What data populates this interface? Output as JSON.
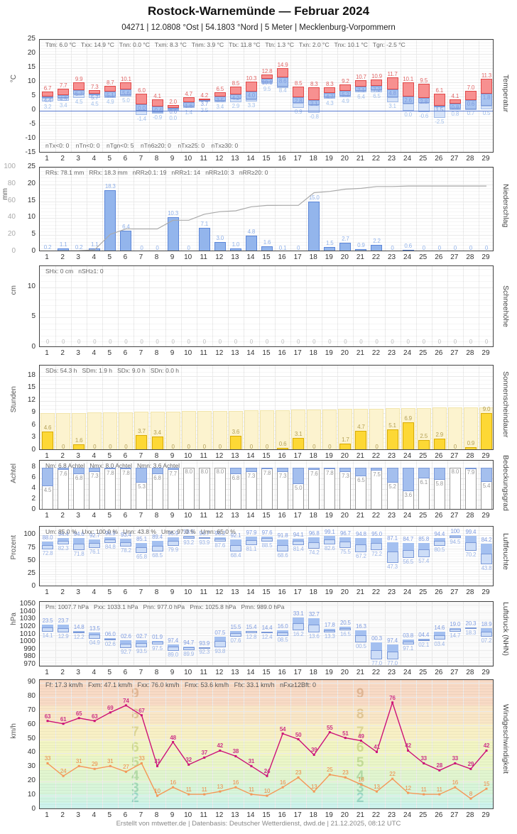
{
  "title": "Rostock-Warnemünde  —  Februar 2024",
  "subtitle": "04271  |  12.0808 °Ost  |  54.1803 °Nord  |  5 Meter  |  Mecklenburg-Vorpommern",
  "footer": "Erstellt von mtwetter.de | Datenbasis: Deutscher Wetterdienst, dwd.de | 21.12.2025, 08:12 UTC",
  "days": [
    1,
    2,
    3,
    4,
    5,
    6,
    7,
    8,
    9,
    10,
    11,
    12,
    13,
    14,
    15,
    16,
    17,
    18,
    19,
    20,
    21,
    22,
    23,
    24,
    25,
    26,
    27,
    28,
    29
  ],
  "colors": {
    "temp_max_fill": "#f79090",
    "temp_max_border": "#e04848",
    "temp_mid_fill": "#a9c4f0",
    "temp_mid_border": "#7b99d8",
    "temp_min_fill": "#d6e3f8",
    "temp_min_border": "#a3bce8",
    "zero_line": "#5577cc",
    "temp_label_max": "#e06666",
    "temp_label_mid": "#7f9ce0",
    "temp_label_min": "#a3c0ea",
    "precip_fill": "#93b5ec",
    "precip_border": "#5c86d8",
    "precip_label": "#8fb0e8",
    "cum_line": "#aaaaaa",
    "snow_label": "#bbbbbb",
    "sun_fill": "#fdd835",
    "sun_border": "#d9ac04",
    "sun_bg_fill": "#fcf3cf",
    "sun_bg_border": "#f2e5ac",
    "sun_label": "#b3a055",
    "cloud_fill": "#a4bfee",
    "cloud_border": "#999999",
    "cloud_label": "#999999",
    "range_fill_light": "#cdddf7",
    "range_fill_dark": "#a4c0f0",
    "range_border": "#7b99d8",
    "range_label_max": "#7f9ce0",
    "range_label_min": "#9ab3e6",
    "wind_fx": "#cc1177",
    "wind_fx_label": "#cc3388",
    "wind_fm": "#f49858",
    "wind_fm_label": "#ee8844"
  },
  "chart_data": [
    {
      "id": "temperatur",
      "kind": "temp",
      "type": "bar",
      "right_label": "Temperatur",
      "unit": "°C",
      "stats": "Ttm: 6.0 °C   Txx: 14.9 °C   Tnn: 0.0 °C   Txm: 8.3 °C   Tnm: 3.9 °C   Ttx: 11.8 °C   Ttn: 1.3 °C   Txn: 2.0 °C   Tnx: 10.1 °C   Tgn: -2.5 °C",
      "stats_bottom": "nTx<0: 0    nTn<0: 0    nTgn<0: 5    nTn6≥20: 0    nTx≥25: 0    nTx≥30: 0",
      "ylim": [
        -15,
        25
      ],
      "ticks": [
        25,
        20,
        15,
        10,
        5,
        0,
        -5,
        -10,
        -15
      ],
      "minor": 1,
      "tmax": [
        6.7,
        7.7,
        9.9,
        7.3,
        8.7,
        10.1,
        6.0,
        4.1,
        2.0,
        4.7,
        4.2,
        6.5,
        8.5,
        10.3,
        12.8,
        14.9,
        8.5,
        8.3,
        8.3,
        9.2,
        10.7,
        10.9,
        11.7,
        10.1,
        9.5,
        6.1,
        4.1,
        7.0,
        11.3
      ],
      "tmid": [
        4.4,
        4.5,
        5.7,
        5.7,
        5.1,
        5.6,
        0.0,
        -0.4,
        0.6,
        1.6,
        3.7,
        3.5,
        4.2,
        4.0,
        10.1,
        8.6,
        2.8,
        2.1,
        4.7,
        5.2,
        7.1,
        7.2,
        4.8,
        2.6,
        2.8,
        1.5,
        0.8,
        0.6,
        1.8
      ],
      "tmin": [
        3.2,
        3.4,
        4.5,
        4.5,
        4.9,
        5.0,
        -1.4,
        -0.9,
        0.0,
        1.4,
        3.5,
        3.4,
        2.9,
        3.3,
        9.5,
        8.4,
        0.9,
        -0.8,
        4.3,
        4.9,
        6.4,
        6.5,
        3.1,
        0.0,
        -0.6,
        -2.5,
        0.8,
        0.7,
        0.5
      ]
    },
    {
      "id": "niederschlag",
      "kind": "precip",
      "type": "bar",
      "right_label": "Niederschlag",
      "unit": "mm",
      "stats": "RRs: 78.1 mm   RRx: 18.3 mm   nRR≥0.1: 19   nRR≥1: 14   nRR≥10: 3   nRR≥20: 0",
      "ylim": [
        0,
        25
      ],
      "ticks": [
        25,
        20,
        15,
        10,
        5,
        0
      ],
      "minor": 1,
      "gray_ylim": [
        0,
        100
      ],
      "gray_ticks": [
        100,
        80,
        60,
        40,
        20,
        0
      ],
      "values": [
        0.2,
        1.1,
        0.2,
        1.1,
        18.3,
        6.4,
        0,
        0,
        10.3,
        0,
        7.1,
        3.0,
        1.0,
        4.8,
        1.6,
        0.1,
        0,
        15.0,
        1.5,
        2.7,
        0.9,
        2.2,
        0,
        0.6,
        0,
        0,
        0,
        0,
        0
      ]
    },
    {
      "id": "schneehoehe",
      "kind": "snow",
      "type": "bar",
      "right_label": "Schneehöhe",
      "unit": "cm",
      "stats": "SHx: 0 cm   nSH≥1: 0",
      "ylim": [
        0,
        13.5
      ],
      "ticks": [
        10,
        5,
        0
      ],
      "minor": 1,
      "values": [
        0,
        0,
        0,
        0,
        0,
        0,
        0,
        0,
        0,
        0,
        0,
        0,
        0,
        0,
        0,
        0,
        0,
        0,
        0,
        0,
        0,
        0,
        0,
        0,
        0,
        0,
        0,
        0,
        0
      ]
    },
    {
      "id": "sonnenscheindauer",
      "kind": "sun",
      "type": "bar",
      "right_label": "Sonnenscheindauer",
      "unit": "Stunden",
      "stats": "SDs: 54.3 h   SDm: 1.9 h   SDx: 9.0 h   SDn: 0.0 h",
      "ylim": [
        0,
        20.5
      ],
      "ticks": [
        18,
        15,
        12,
        9,
        6,
        3,
        0
      ],
      "minor": 1,
      "daylight_start": 9.0,
      "daylight_end": 10.5,
      "values": [
        4.6,
        0,
        1.6,
        0,
        0,
        0,
        3.7,
        3.4,
        0,
        0,
        0,
        0,
        3.6,
        0,
        0,
        0.6,
        3.1,
        0,
        0,
        1.7,
        4.7,
        0,
        5.1,
        6.9,
        2.5,
        2.9,
        0,
        0.9,
        9.0
      ]
    },
    {
      "id": "bedeckungsgrad",
      "kind": "cloud",
      "type": "bar",
      "right_label": "Bedeckungsgrad",
      "unit": "Achtel",
      "stats": "Nm: 6.8 Achtel   Nmx: 8.0 Achtel   Nmn: 3.6 Achtel",
      "ylim": [
        0,
        9.4
      ],
      "ticks": [
        8,
        6,
        4,
        2,
        0
      ],
      "minor": 1,
      "full_scale": 8,
      "values": [
        4.5,
        7.6,
        6.8,
        7.3,
        7.8,
        7.8,
        5.3,
        6.8,
        7.7,
        8.0,
        8.0,
        8.0,
        6.8,
        7.3,
        7.8,
        7.3,
        5.0,
        7.6,
        7.8,
        7.3,
        6.5,
        7.5,
        5.2,
        3.6,
        6.1,
        5.8,
        8.0,
        7.9,
        5.4
      ]
    },
    {
      "id": "luftfeuchte",
      "kind": "range",
      "type": "bar",
      "right_label": "Luftfeuchte",
      "unit": "Prozent",
      "label_fmt": "percent",
      "stats": "Um: 85.0 %   Uxx: 100.0 %   Unn: 43.8 %   Umx: 97.0 %   Umn: 65.0 %",
      "ylim": [
        0,
        117
      ],
      "ticks": [
        100,
        75,
        50,
        25,
        0
      ],
      "minor": 5,
      "vmax": [
        88.0,
        94.4,
        94.6,
        92.7,
        96.9,
        93.4,
        85.1,
        89.4,
        96.9,
        98.5,
        96.7,
        96.2,
        92.1,
        97.9,
        97.6,
        91.8,
        94.1,
        96.8,
        99.1,
        96.7,
        94.8,
        95.0,
        87.1,
        84.7,
        85.8,
        94.4,
        100,
        99.4,
        84.2
      ],
      "vmin": [
        72.8,
        82.3,
        71.8,
        76.1,
        84.8,
        78.2,
        65.8,
        68.5,
        79.9,
        93.2,
        93.9,
        87.6,
        68.4,
        81.1,
        88.5,
        68.6,
        81.4,
        74.2,
        82.6,
        75.5,
        67.2,
        72.2,
        47.3,
        56.5,
        57.4,
        80.5,
        94.5,
        70.2,
        43.8
      ]
    },
    {
      "id": "luftdruck",
      "kind": "range",
      "type": "bar",
      "right_label": "Luftdruck (NHN)",
      "unit": "hPa",
      "label_fmt": "mod100",
      "stats": "Pm: 1007.7 hPa   Pxx: 1033.1 hPa   Pnn: 977.0 hPa   Pmx: 1025.8 hPa   Pmn: 989.0 hPa",
      "ylim": [
        967,
        1054
      ],
      "ticks": [
        1050,
        1040,
        1030,
        1020,
        1010,
        1000,
        990,
        980,
        970
      ],
      "minor": 2,
      "vmax": [
        1023.5,
        1023.7,
        1014.8,
        1013.5,
        1006.0,
        1002.6,
        1002.7,
        1001.9,
        997.4,
        994.7,
        993.9,
        1007.5,
        1015.5,
        1015.4,
        1014.4,
        1016.0,
        1033.1,
        1032.7,
        1017.8,
        1020.5,
        1016.3,
        1000.3,
        997.4,
        1003.8,
        1004.4,
        1014.6,
        1019.0,
        1020.3,
        1018.9
      ],
      "vmin": [
        1014.1,
        1012.9,
        1012.2,
        1004.9,
        1002.6,
        992.7,
        993.5,
        997.5,
        989.0,
        989.9,
        992.3,
        993.8,
        1007.6,
        1012.8,
        1012.4,
        1008.5,
        1016.2,
        1013.6,
        1013.3,
        1016.5,
        1000.5,
        977.0,
        977.0,
        997.1,
        1002.1,
        1003.4,
        1014.7,
        1018.3,
        1007.2
      ]
    },
    {
      "id": "windgeschwindigkeit",
      "kind": "wind",
      "type": "line",
      "right_label": "Windgeschwindigkeit",
      "unit": "km/h",
      "stats": "Ff: 17.3 km/h   Fxm: 47.1 km/h   Fxx: 76.0 km/h   Fmx: 53.6 km/h   Ffx: 33.1 km/h   nFx≥12Bft: 0",
      "ylim": [
        0,
        92
      ],
      "ticks": [
        90,
        80,
        70,
        60,
        50,
        40,
        30,
        20,
        10,
        0
      ],
      "minor": 2,
      "series": [
        {
          "name": "Fx (Böen)",
          "values": [
            63,
            61,
            65,
            63,
            69,
            74,
            67,
            31,
            48,
            32,
            37,
            42,
            38,
            31,
            24,
            54,
            50,
            39,
            55,
            51,
            49,
            41,
            76,
            42,
            33,
            28,
            33,
            29,
            42
          ]
        },
        {
          "name": "Fm (Mittel)",
          "values": [
            33,
            24,
            31,
            29,
            31,
            27,
            33,
            10,
            16,
            11,
            11,
            13,
            16,
            11,
            10,
            16,
            23,
            13,
            25,
            23,
            18,
            13,
            22,
            12,
            11,
            11,
            16,
            8,
            15
          ]
        }
      ],
      "bands": [
        {
          "from": 0,
          "to": 5,
          "color": "#cdf3ec"
        },
        {
          "from": 5,
          "to": 11,
          "color": "#d1f4e3"
        },
        {
          "from": 11,
          "to": 19,
          "color": "#d8f5d9"
        },
        {
          "from": 19,
          "to": 28,
          "color": "#e1f5cf"
        },
        {
          "from": 28,
          "to": 38,
          "color": "#eaf6c8"
        },
        {
          "from": 38,
          "to": 49,
          "color": "#f2f5c4"
        },
        {
          "from": 49,
          "to": 61,
          "color": "#f8f0c5"
        },
        {
          "from": 61,
          "to": 74,
          "color": "#f9e6c7"
        },
        {
          "from": 74,
          "to": 92,
          "color": "#f8dac5"
        }
      ],
      "band_numbers": [
        {
          "v": "2",
          "y": 8,
          "color": "#9bd8c6"
        },
        {
          "v": "3",
          "y": 15,
          "color": "#a3dab8"
        },
        {
          "v": "4",
          "y": 23.5,
          "color": "#b3dba6"
        },
        {
          "v": "5",
          "y": 33,
          "color": "#c4dd99"
        },
        {
          "v": "6",
          "y": 43.5,
          "color": "#d2dd92"
        },
        {
          "v": "7",
          "y": 55,
          "color": "#ded794"
        },
        {
          "v": "8",
          "y": 67.5,
          "color": "#e1c795"
        },
        {
          "v": "9",
          "y": 82,
          "color": "#e1b795"
        }
      ]
    }
  ]
}
